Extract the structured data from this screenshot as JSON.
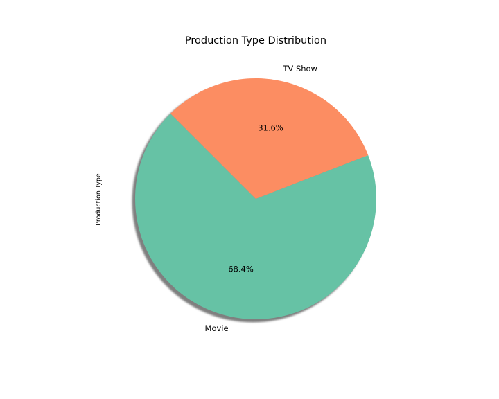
{
  "chart_data": {
    "type": "pie",
    "title": "Production Type Distribution",
    "ylabel": "Production Type",
    "categories": [
      "Movie",
      "TV Show"
    ],
    "values": [
      68.4,
      31.6
    ],
    "percent_labels": [
      "68.4%",
      "31.6%"
    ],
    "colors": [
      "#66c2a5",
      "#fc8d62"
    ],
    "shadow": true,
    "legend": "none"
  }
}
